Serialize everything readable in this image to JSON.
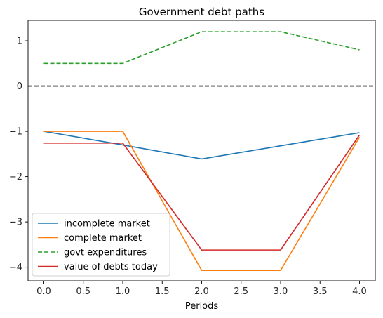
{
  "chart_data": {
    "type": "line",
    "title": "Government debt paths",
    "xlabel": "Periods",
    "ylabel": "",
    "xlim": [
      -0.2,
      4.2
    ],
    "ylim": [
      -4.3,
      1.45
    ],
    "xticks": [
      0.0,
      0.5,
      1.0,
      1.5,
      2.0,
      2.5,
      3.0,
      3.5,
      4.0
    ],
    "xtick_labels": [
      "0.0",
      "0.5",
      "1.0",
      "1.5",
      "2.0",
      "2.5",
      "3.0",
      "3.5",
      "4.0"
    ],
    "yticks": [
      1,
      0,
      -1,
      -2,
      -3,
      -4
    ],
    "ytick_labels": [
      "1",
      "0",
      "−1",
      "−2",
      "−3",
      "−4"
    ],
    "grid": false,
    "legend_position": "lower-left",
    "reference_line": {
      "y": 0,
      "color": "#000000",
      "style": "dashed"
    },
    "x": [
      0,
      1,
      2,
      3,
      4
    ],
    "series": [
      {
        "name": "incomplete market",
        "values": [
          -1.0,
          -1.3,
          -1.61,
          -1.32,
          -1.03
        ],
        "color": "#1f77b4",
        "style": "solid"
      },
      {
        "name": "complete market",
        "values": [
          -1.0,
          -1.0,
          -4.07,
          -4.07,
          -1.13
        ],
        "color": "#ff7f0e",
        "style": "solid"
      },
      {
        "name": "govt expenditures",
        "values": [
          0.5,
          0.5,
          1.2,
          1.2,
          0.8
        ],
        "color": "#2ca02c",
        "style": "dashed"
      },
      {
        "name": "value of debts today",
        "values": [
          -1.26,
          -1.26,
          -3.62,
          -3.62,
          -1.08
        ],
        "color": "#d62728",
        "style": "solid"
      }
    ]
  }
}
